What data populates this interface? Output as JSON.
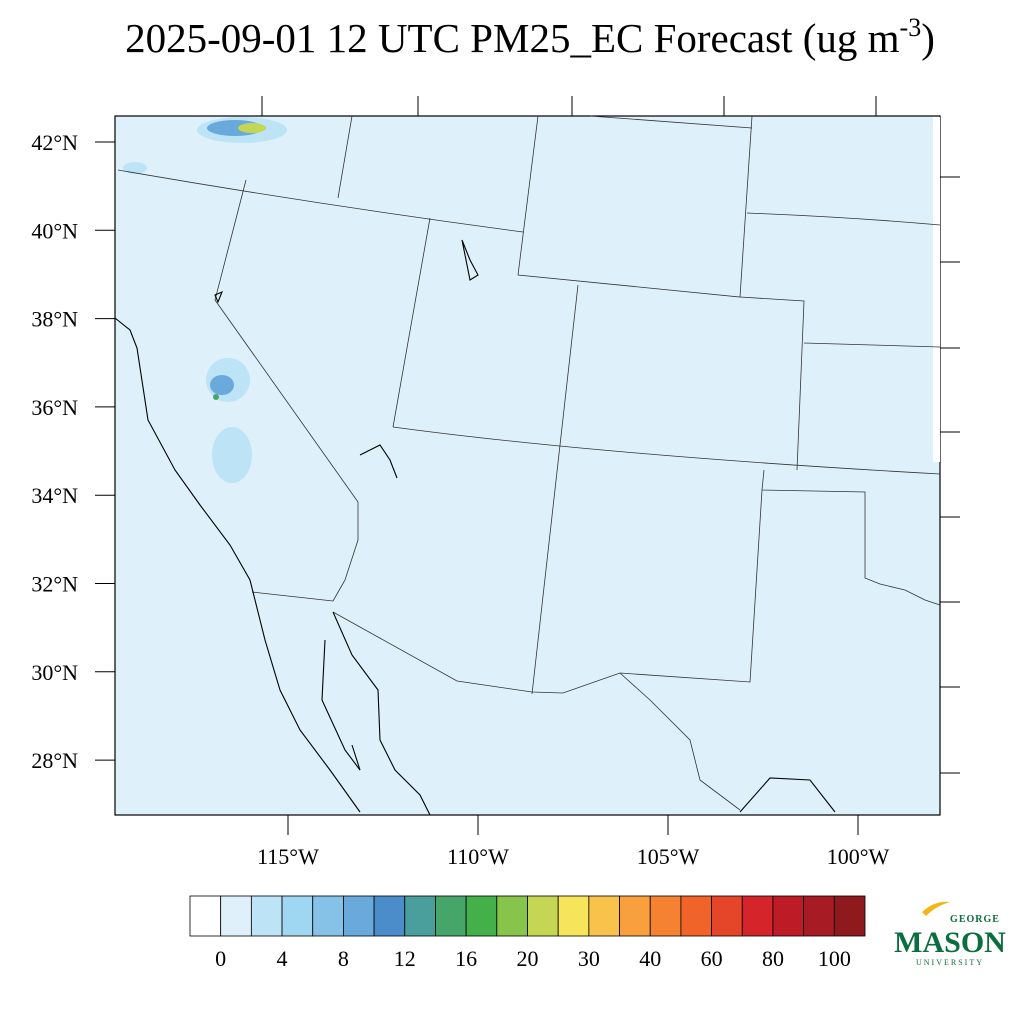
{
  "title": {
    "main": "2025-09-01 12 UTC PM25_EC Forecast (ug m",
    "superscript": "-3",
    "close": ")"
  },
  "lat_labels": [
    "42°N",
    "40°N",
    "38°N",
    "36°N",
    "34°N",
    "32°N",
    "30°N",
    "28°N"
  ],
  "lon_labels": [
    "115°W",
    "110°W",
    "105°W",
    "100°W"
  ],
  "colorbar": {
    "colors": [
      "#ffffff",
      "#dff0fa",
      "#bde3f6",
      "#9fd7f3",
      "#86c1e7",
      "#69a9dc",
      "#4b8ccb",
      "#4a9e9c",
      "#46a66a",
      "#44b04a",
      "#86c44c",
      "#c4d654",
      "#f6e55a",
      "#f8c24b",
      "#f7a03d",
      "#f58231",
      "#f06429",
      "#e5462a",
      "#d6252a",
      "#bd1c27",
      "#a71b25",
      "#8f1a1e"
    ],
    "labels": [
      0,
      4,
      8,
      12,
      16,
      20,
      30,
      40,
      60,
      80,
      100
    ]
  },
  "logo": {
    "top": "GEORGE",
    "main": "MASON",
    "bottom": "UNIVERSITY"
  }
}
